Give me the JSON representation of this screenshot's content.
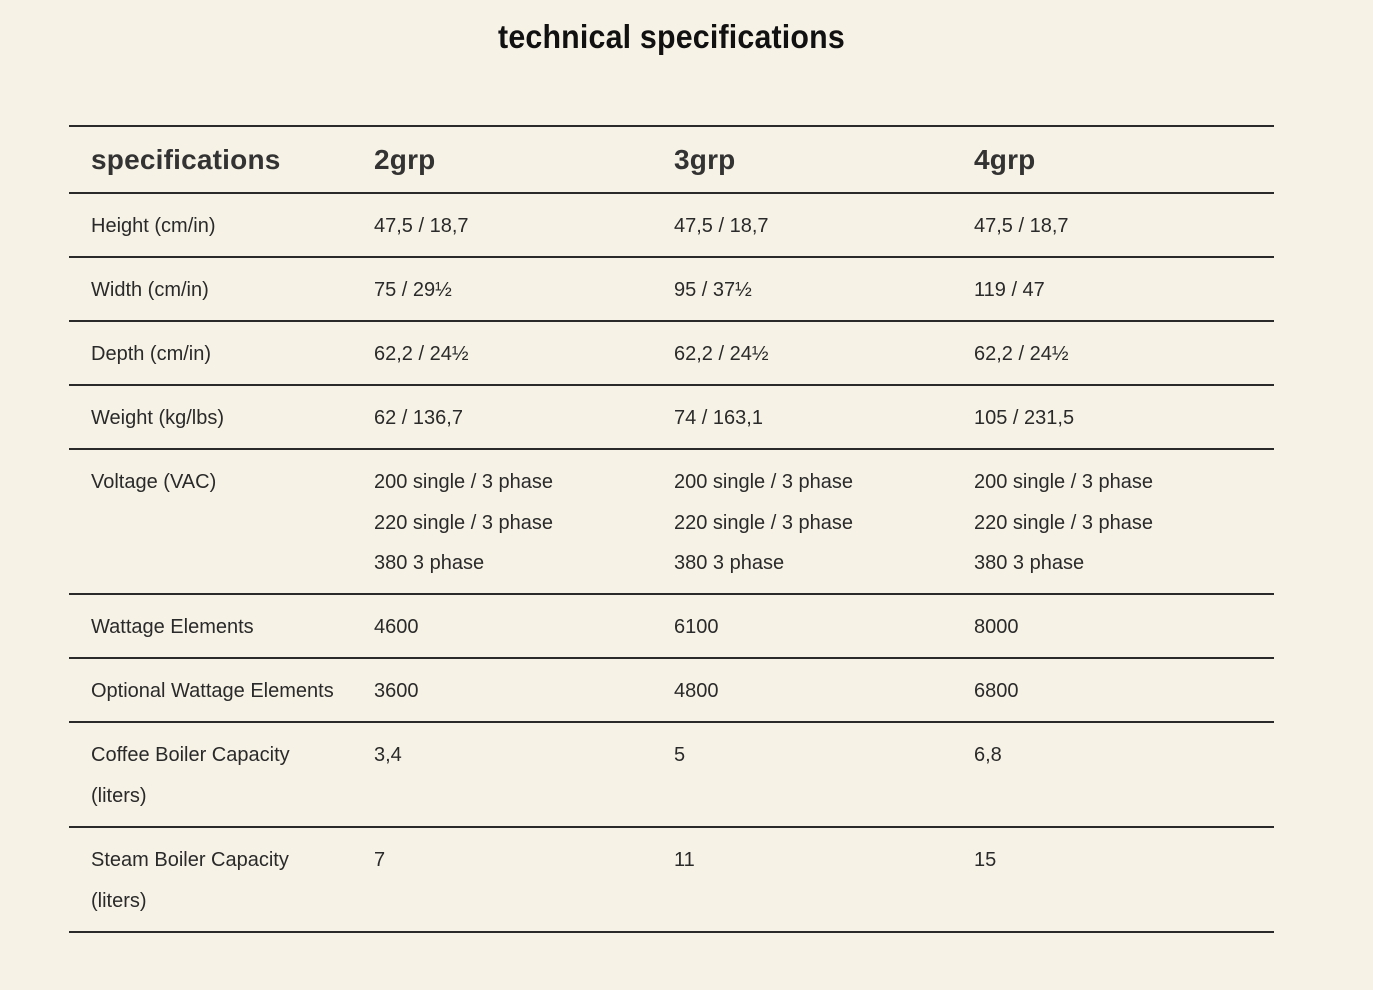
{
  "title": "technical specifications",
  "table": {
    "headers": [
      "specifications",
      "2grp",
      "3grp",
      "4grp"
    ],
    "rows": [
      {
        "label": [
          "Height (cm/in)"
        ],
        "values": [
          [
            "47,5 / 18,7"
          ],
          [
            "47,5 / 18,7"
          ],
          [
            "47,5 / 18,7"
          ]
        ]
      },
      {
        "label": [
          "Width (cm/in)"
        ],
        "values": [
          [
            "75 / 29½"
          ],
          [
            "95 / 37½"
          ],
          [
            "119 / 47"
          ]
        ]
      },
      {
        "label": [
          "Depth (cm/in)"
        ],
        "values": [
          [
            "62,2 / 24½"
          ],
          [
            "62,2 / 24½"
          ],
          [
            "62,2 / 24½"
          ]
        ]
      },
      {
        "label": [
          "Weight (kg/lbs)"
        ],
        "values": [
          [
            "62 / 136,7"
          ],
          [
            "74 / 163,1"
          ],
          [
            "105 / 231,5"
          ]
        ]
      },
      {
        "label": [
          "Voltage (VAC)"
        ],
        "values": [
          [
            "200 single / 3 phase",
            "220 single / 3 phase",
            "380 3 phase"
          ],
          [
            "200 single / 3 phase",
            "220 single / 3 phase",
            "380 3 phase"
          ],
          [
            "200 single / 3 phase",
            "220 single / 3 phase",
            "380 3 phase"
          ]
        ]
      },
      {
        "label": [
          "Wattage Elements"
        ],
        "values": [
          [
            "4600"
          ],
          [
            "6100"
          ],
          [
            "8000"
          ]
        ]
      },
      {
        "label": [
          "Optional Wattage Elements"
        ],
        "values": [
          [
            "3600"
          ],
          [
            "4800"
          ],
          [
            "6800"
          ]
        ]
      },
      {
        "label": [
          "Coffee Boiler Capacity",
          "(liters)"
        ],
        "values": [
          [
            "3,4"
          ],
          [
            "5"
          ],
          [
            "6,8"
          ]
        ]
      },
      {
        "label": [
          "Steam Boiler Capacity",
          "(liters)"
        ],
        "values": [
          [
            "7"
          ],
          [
            "11"
          ],
          [
            "15"
          ]
        ]
      }
    ]
  }
}
